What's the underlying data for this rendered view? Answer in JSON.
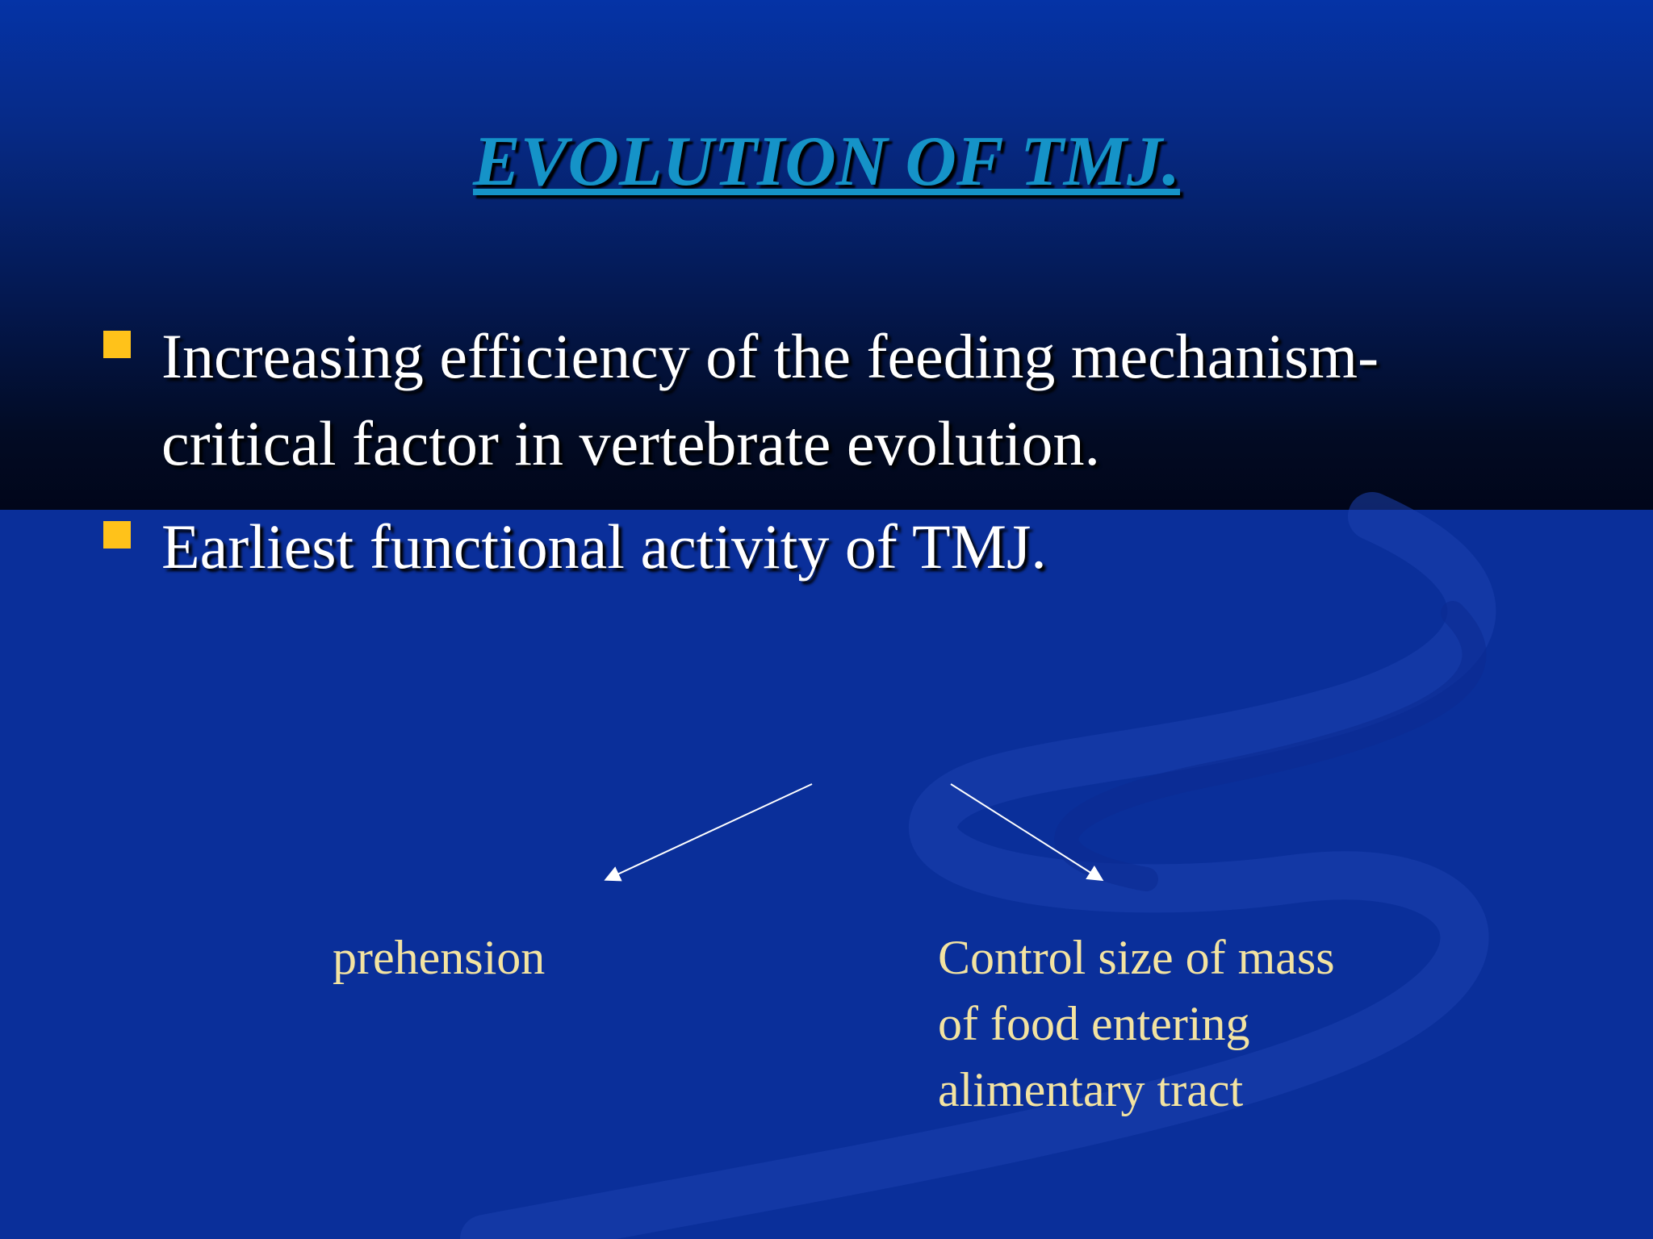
{
  "slide": {
    "title": "EVOLUTION OF TMJ.",
    "bullets": [
      {
        "line1": "Increasing efficiency of  the feeding mechanism-",
        "line2": "critical factor in vertebrate evolution."
      },
      {
        "line1": "Earliest functional activity of  TMJ."
      }
    ],
    "diagram": {
      "left_label": "prehension",
      "right_label_lines": [
        "Control size of mass",
        "of food entering",
        "alimentary tract"
      ]
    },
    "colors": {
      "title": "#1593c8",
      "bullet_marker": "#ffc21a",
      "label_text": "#f3e3a1",
      "background": "#0a2f9a"
    }
  }
}
